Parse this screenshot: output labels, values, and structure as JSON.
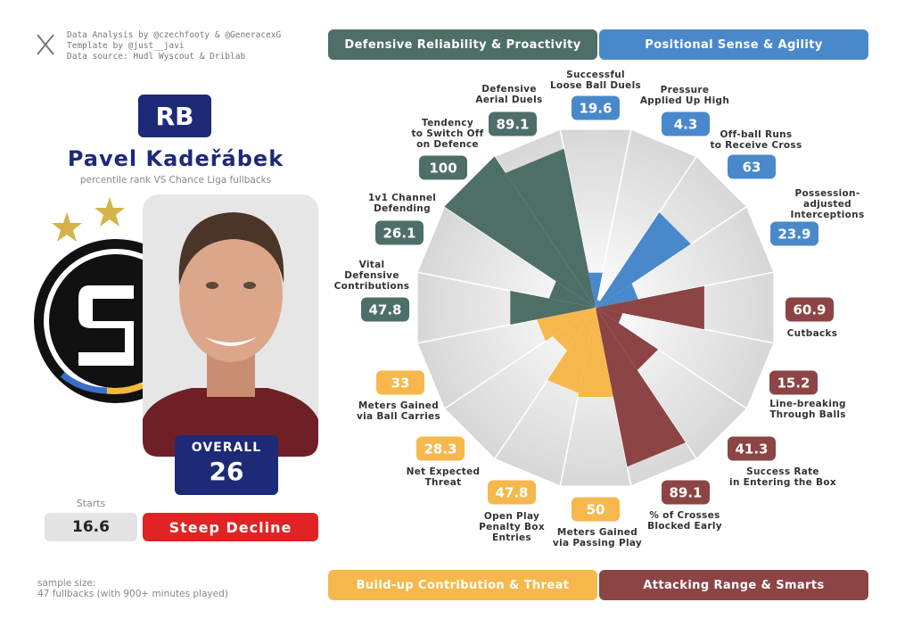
{
  "credits": [
    "Data Analysis by @czechfooty & @GeneracexG",
    "Template by @just__javi",
    "Data source: Hudl Wyscout & Driblab"
  ],
  "player": {
    "position": "RB",
    "name": "Pavel Kadeřábek",
    "subtitle": "percentile rank VS Chance Liga fullbacks",
    "overall_label": "OVERALL",
    "overall_value": 26,
    "starts_label": "Starts",
    "starts_value": 16.6,
    "trend": "Steep Decline"
  },
  "sample_size": [
    "sample size:",
    "47 fullbacks (with 900+ minutes played)"
  ],
  "chart_data": {
    "type": "polar-bar",
    "categories": [
      "Successful\nLoose Ball Duels",
      "Pressure\nApplied Up High",
      "Off-ball Runs\nto Receive Cross",
      "Possession-adjusted\nInterceptions",
      "Cutbacks",
      "Line-breaking\nThrough Balls",
      "Success Rate\nin Entering the Box",
      "% of Crosses\nBlocked Early",
      "Meters Gained\nvia Passing Play",
      "Open Play\nPenalty Box\nEntries",
      "Net Expected\nThreat",
      "Meters Gained\nvia Ball Carries",
      "Vital\nDefensive\nContributions",
      "1v1 Channel\nDefending",
      "Tendency\nto Switch Off\non Defence",
      "Defensive\nAerial Duels"
    ],
    "ylim": [
      0,
      100
    ],
    "series": [
      {
        "name": "Defensive Reliability & Proactivity",
        "color": "#4e6e68",
        "values": [
          null,
          null,
          null,
          null,
          null,
          null,
          null,
          null,
          null,
          null,
          null,
          null,
          47.8,
          26.1,
          100,
          89.1
        ]
      },
      {
        "name": "Positional Sense & Agility",
        "color": "#4a88cc",
        "values": [
          19.6,
          4.3,
          63,
          23.9,
          null,
          null,
          null,
          null,
          null,
          null,
          null,
          null,
          null,
          null,
          null,
          null
        ]
      },
      {
        "name": "Build-up Contribution & Threat",
        "color": "#f6b84c",
        "values": [
          null,
          null,
          null,
          null,
          null,
          null,
          null,
          null,
          50,
          47.8,
          28.3,
          33,
          null,
          null,
          null,
          null
        ]
      },
      {
        "name": "Attacking Range & Smarts",
        "color": "#8c4444",
        "values": [
          null,
          null,
          null,
          null,
          60.9,
          15.2,
          41.3,
          89.1,
          null,
          null,
          null,
          null,
          null,
          null,
          null,
          null
        ]
      }
    ]
  }
}
